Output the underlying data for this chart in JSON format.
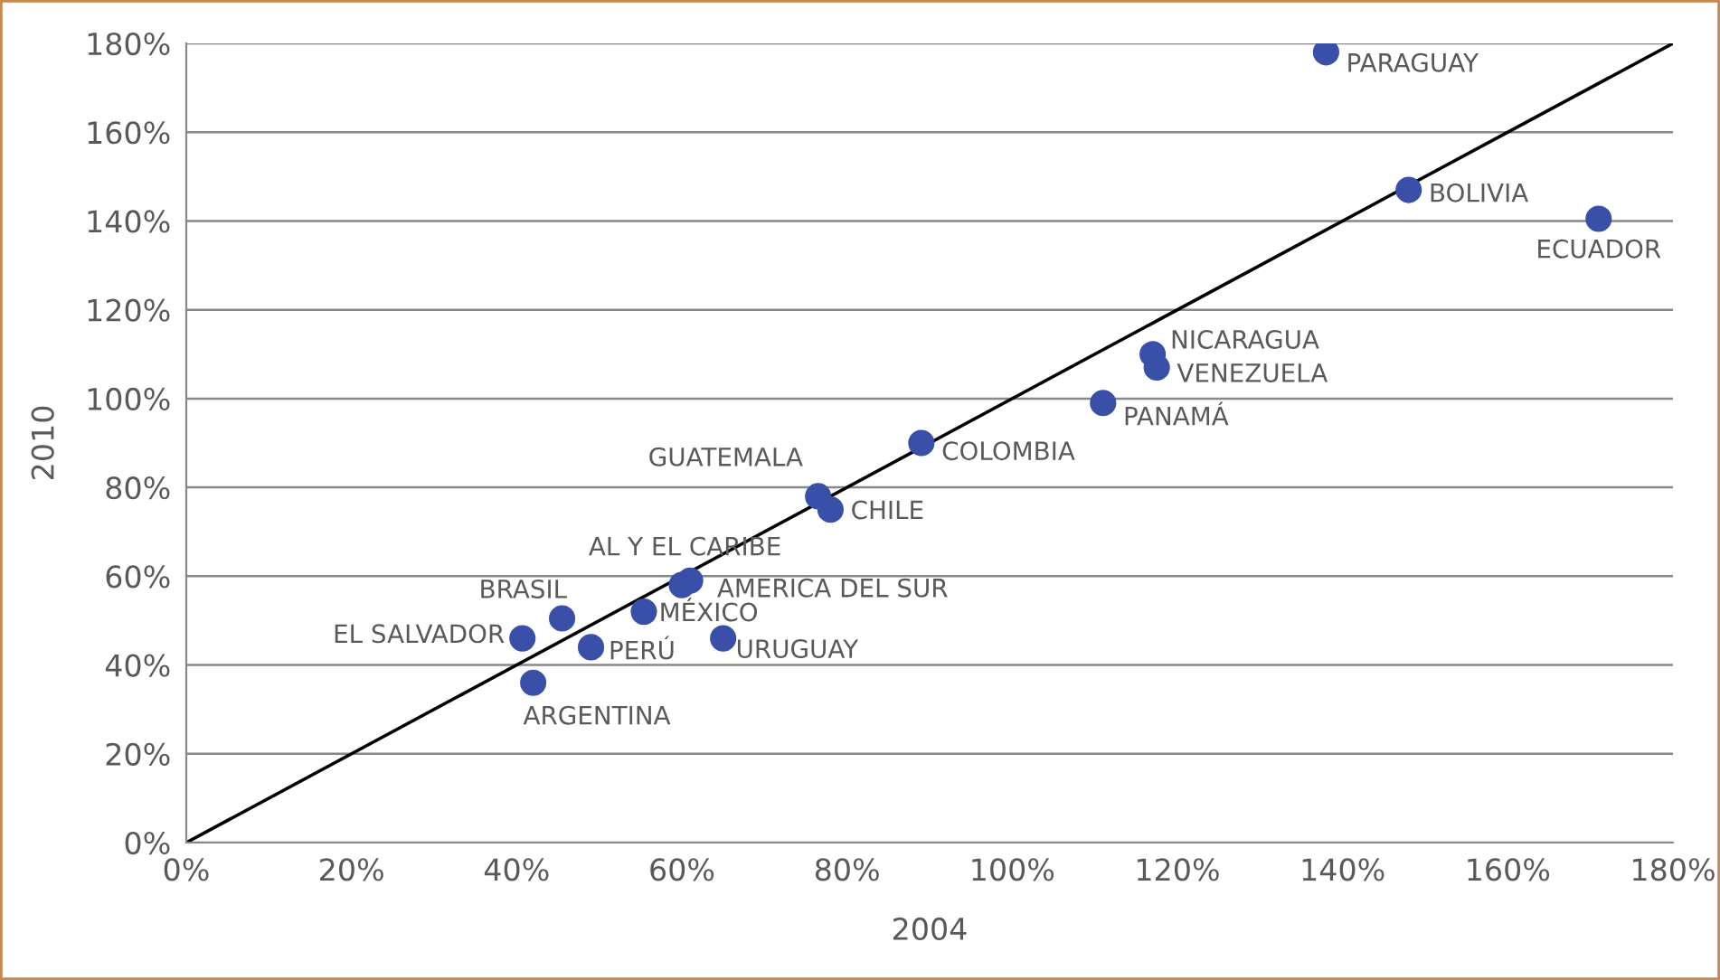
{
  "chart_data": {
    "type": "scatter",
    "xlabel": "2004",
    "ylabel": "2010",
    "xlim": [
      0,
      180
    ],
    "ylim": [
      0,
      180
    ],
    "xticks": [
      {
        "value": 0,
        "label": "0%"
      },
      {
        "value": 20,
        "label": "20%"
      },
      {
        "value": 40,
        "label": "40%"
      },
      {
        "value": 60,
        "label": "60%"
      },
      {
        "value": 80,
        "label": "80%"
      },
      {
        "value": 100,
        "label": "100%"
      },
      {
        "value": 120,
        "label": "120%"
      },
      {
        "value": 140,
        "label": "140%"
      },
      {
        "value": 160,
        "label": "160%"
      },
      {
        "value": 180,
        "label": "180%"
      }
    ],
    "yticks": [
      {
        "value": 0,
        "label": "0%"
      },
      {
        "value": 20,
        "label": "20%"
      },
      {
        "value": 40,
        "label": "40%"
      },
      {
        "value": 60,
        "label": "60%"
      },
      {
        "value": 80,
        "label": "80%"
      },
      {
        "value": 100,
        "label": "100%"
      },
      {
        "value": 120,
        "label": "120%"
      },
      {
        "value": 140,
        "label": "140%"
      },
      {
        "value": 160,
        "label": "160%"
      },
      {
        "value": 180,
        "label": "180%"
      }
    ],
    "grid": "y",
    "legend": false,
    "marker": "circle",
    "series": [
      {
        "color": "#3a4fa8",
        "x": [
          138,
          148,
          171,
          117,
          117.5,
          111,
          89,
          76.5,
          78,
          61,
          60,
          55.4,
          65,
          49,
          45.5,
          40.7,
          42
        ],
        "values": [
          178,
          147,
          140.5,
          110,
          107,
          99,
          90,
          78,
          75,
          59,
          58,
          52,
          46,
          44,
          50.5,
          46,
          36
        ]
      },
      {
        "type": "line",
        "color": "#000000",
        "x": [
          0,
          180
        ],
        "values": [
          0,
          180
        ],
        "marker": "none",
        "line_style": "solid"
      }
    ],
    "annotations": [
      {
        "text": "PARAGUAY",
        "x": 138,
        "y": 178
      },
      {
        "text": "BOLIVIA",
        "x": 148,
        "y": 147
      },
      {
        "text": "ECUADOR",
        "x": 171,
        "y": 140.5
      },
      {
        "text": "NICARAGUA",
        "x": 117,
        "y": 110
      },
      {
        "text": "VENEZUELA",
        "x": 117.5,
        "y": 107
      },
      {
        "text": "PANAMÁ",
        "x": 111,
        "y": 99
      },
      {
        "text": "COLOMBIA",
        "x": 89,
        "y": 90
      },
      {
        "text": "GUATEMALA",
        "x": 76.5,
        "y": 78
      },
      {
        "text": "CHILE",
        "x": 78,
        "y": 75
      },
      {
        "text": "AL Y EL CARIBE",
        "x": 61,
        "y": 59
      },
      {
        "text": "AMERICA DEL SUR",
        "x": 60,
        "y": 58
      },
      {
        "text": "MÉXICO",
        "x": 55.4,
        "y": 52
      },
      {
        "text": "URUGUAY",
        "x": 65,
        "y": 46
      },
      {
        "text": "PERÚ",
        "x": 49,
        "y": 44
      },
      {
        "text": "BRASIL",
        "x": 45.5,
        "y": 50.5
      },
      {
        "text": "EL SALVADOR",
        "x": 40.7,
        "y": 46
      },
      {
        "text": "ARGENTINA",
        "x": 42,
        "y": 36
      }
    ]
  }
}
